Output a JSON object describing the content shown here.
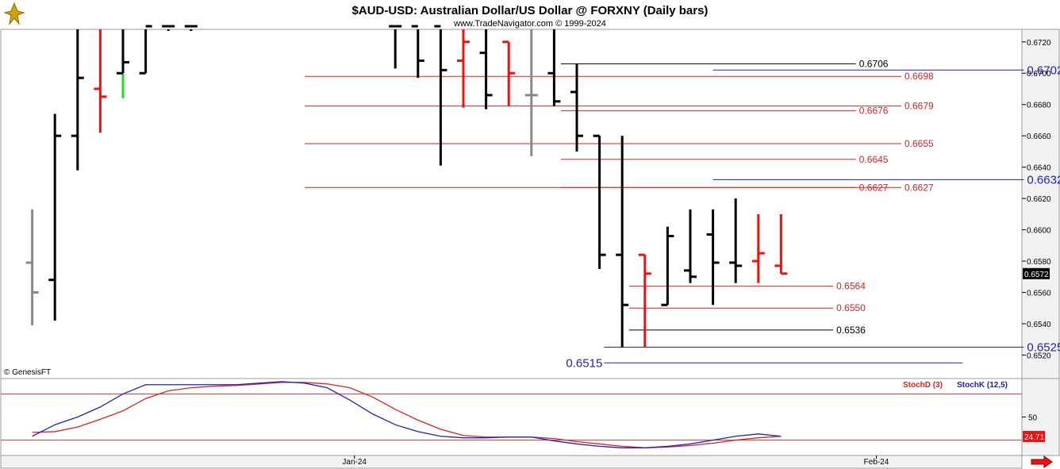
{
  "header": {
    "title": "$AUD-USD:  Australian Dollar/US Dollar @ FORXNY  (Daily bars)",
    "subtitle": "www.TradeNavigator.com © 1999-2024",
    "copyright": "© GenesisFT"
  },
  "colors": {
    "background": "#ffffff",
    "plot_background": "#ffffff",
    "axis_panel": "#f2f2f2",
    "up_bar": "#000000",
    "down_bar": "#ee1111",
    "neutral_bar": "#888888",
    "green_bar": "#22dd22",
    "red_line": "#dd2222",
    "blue_line": "#2222bb",
    "black_line": "#000000",
    "stoch_d": "#dd2222",
    "stoch_k": "#2222bb"
  },
  "price_axis": {
    "ticks": [
      "0.6720",
      "0.6700",
      "0.6680",
      "0.6660",
      "0.6640",
      "0.6620",
      "0.6600",
      "0.6580",
      "0.6560",
      "0.6540",
      "0.6520"
    ],
    "current_price": "0.6572"
  },
  "time_axis": {
    "labels": [
      "Jan-24",
      "Feb-24"
    ]
  },
  "chart_data": [
    {
      "type": "ohlc",
      "title": "$AUD-USD:  Australian Dollar/US Dollar @ FORXNY  (Daily bars)",
      "ylim": [
        0.6505,
        0.6728
      ],
      "bars": [
        {
          "x": 1,
          "o": 0.6579,
          "h": 0.6613,
          "l": 0.6539,
          "c": 0.656,
          "color": "neutral"
        },
        {
          "x": 2,
          "o": 0.6568,
          "h": 0.6674,
          "l": 0.6542,
          "c": 0.666,
          "color": "up"
        },
        {
          "x": 3,
          "o": 0.666,
          "h": 0.673,
          "l": 0.6638,
          "c": 0.6697,
          "color": "up"
        },
        {
          "x": 4,
          "o": 0.669,
          "h": 0.673,
          "l": 0.6662,
          "c": 0.6685,
          "color": "down"
        },
        {
          "x": 5,
          "o": 0.67,
          "h": 0.673,
          "l": 0.6684,
          "c": 0.6707,
          "color": "up",
          "low_color": "green"
        },
        {
          "x": 6,
          "o": 0.67,
          "h": 0.673,
          "l": 0.67,
          "c": 0.673,
          "color": "up"
        },
        {
          "x": 7,
          "o": 0.673,
          "h": 0.673,
          "l": 0.6727,
          "c": 0.673,
          "color": "up"
        },
        {
          "x": 8,
          "o": 0.673,
          "h": 0.673,
          "l": 0.6727,
          "c": 0.673,
          "color": "up"
        },
        {
          "x": 17,
          "o": 0.673,
          "h": 0.673,
          "l": 0.6703,
          "c": 0.673,
          "color": "up"
        },
        {
          "x": 18,
          "o": 0.673,
          "h": 0.673,
          "l": 0.6697,
          "c": 0.6708,
          "color": "up"
        },
        {
          "x": 19,
          "o": 0.673,
          "h": 0.673,
          "l": 0.6641,
          "c": 0.6702,
          "color": "up"
        },
        {
          "x": 20,
          "o": 0.6708,
          "h": 0.673,
          "l": 0.6678,
          "c": 0.672,
          "color": "down"
        },
        {
          "x": 21,
          "o": 0.6713,
          "h": 0.673,
          "l": 0.6677,
          "c": 0.6686,
          "color": "up"
        },
        {
          "x": 22,
          "o": 0.672,
          "h": 0.672,
          "l": 0.6679,
          "c": 0.67,
          "color": "down"
        },
        {
          "x": 23,
          "o": 0.6686,
          "h": 0.673,
          "l": 0.6647,
          "c": 0.6686,
          "color": "neutral"
        },
        {
          "x": 24,
          "o": 0.67,
          "h": 0.673,
          "l": 0.6679,
          "c": 0.6682,
          "color": "up"
        },
        {
          "x": 25,
          "o": 0.6688,
          "h": 0.6706,
          "l": 0.665,
          "c": 0.666,
          "color": "up"
        },
        {
          "x": 26,
          "o": 0.666,
          "h": 0.666,
          "l": 0.6575,
          "c": 0.6584,
          "color": "up"
        },
        {
          "x": 27,
          "o": 0.6584,
          "h": 0.666,
          "l": 0.6525,
          "c": 0.6552,
          "color": "up"
        },
        {
          "x": 28,
          "o": 0.6584,
          "h": 0.6584,
          "l": 0.6525,
          "c": 0.6572,
          "color": "down"
        },
        {
          "x": 29,
          "o": 0.6552,
          "h": 0.6602,
          "l": 0.6552,
          "c": 0.6596,
          "color": "up"
        },
        {
          "x": 30,
          "o": 0.6574,
          "h": 0.6613,
          "l": 0.6566,
          "c": 0.657,
          "color": "up"
        },
        {
          "x": 31,
          "o": 0.6597,
          "h": 0.6613,
          "l": 0.6552,
          "c": 0.6579,
          "color": "up"
        },
        {
          "x": 32,
          "o": 0.6579,
          "h": 0.662,
          "l": 0.6566,
          "c": 0.6577,
          "color": "up"
        },
        {
          "x": 33,
          "o": 0.658,
          "h": 0.661,
          "l": 0.6566,
          "c": 0.6585,
          "color": "down"
        },
        {
          "x": 34,
          "o": 0.6577,
          "h": 0.661,
          "l": 0.6572,
          "c": 0.6572,
          "color": "down"
        }
      ],
      "levels": [
        {
          "value": 0.6706,
          "label": "0.6706",
          "color": "black",
          "x_from": 24.3,
          "x_to": 37.3,
          "label_side": "end"
        },
        {
          "value": 0.6702,
          "label": "0.6702",
          "color": "blue",
          "x_from": 31,
          "x_to": 44.7,
          "label_side": "end",
          "large": true
        },
        {
          "value": 0.6698,
          "label": "0.6698",
          "color": "red",
          "x_from": 13,
          "x_to": 39.3,
          "label_side": "end"
        },
        {
          "value": 0.6679,
          "label": "0.6679",
          "color": "red",
          "x_from": 13,
          "x_to": 39.3,
          "label_side": "end"
        },
        {
          "value": 0.6676,
          "label": "0.6676",
          "color": "red",
          "x_from": 24.3,
          "x_to": 37.3,
          "label_side": "end"
        },
        {
          "value": 0.6655,
          "label": "0.6655",
          "color": "red",
          "x_from": 13,
          "x_to": 39.3,
          "label_side": "end"
        },
        {
          "value": 0.6645,
          "label": "0.6645",
          "color": "red",
          "x_from": 24.3,
          "x_to": 37.3,
          "label_side": "end"
        },
        {
          "value": 0.6632,
          "label": "0.6632",
          "color": "blue",
          "x_from": 31,
          "x_to": 44.7,
          "label_side": "end",
          "large": true
        },
        {
          "value": 0.6627,
          "label": "0.6627",
          "color": "red",
          "x_from": 24.3,
          "x_to": 37.3,
          "label_side": "end"
        },
        {
          "value": 0.6627,
          "label": "0.6627",
          "color": "red",
          "x_from": 13,
          "x_to": 39.3,
          "label_side": "end"
        },
        {
          "value": 0.6564,
          "label": "0.6564",
          "color": "red",
          "x_from": 27.3,
          "x_to": 36.3,
          "label_side": "end"
        },
        {
          "value": 0.655,
          "label": "0.6550",
          "color": "red",
          "x_from": 27.3,
          "x_to": 36.3,
          "label_side": "end"
        },
        {
          "value": 0.6536,
          "label": "0.6536",
          "color": "black",
          "x_from": 27.3,
          "x_to": 36.3,
          "label_side": "end"
        },
        {
          "value": 0.6525,
          "label": "0.6525",
          "color": "blue",
          "x_from": 26.2,
          "x_to": 44.7,
          "label_side": "end",
          "large": true
        },
        {
          "value": 0.6515,
          "label": "0.6515",
          "color": "blue",
          "x_from": 26.2,
          "x_to": 42,
          "label_side": "start",
          "large": true
        }
      ]
    },
    {
      "type": "line",
      "title": "",
      "legend": [
        "StochD (3)",
        "StochK (12,5)"
      ],
      "ylim": [
        0,
        100
      ],
      "yticks": [
        "50"
      ],
      "hlines": [
        80,
        20
      ],
      "last_value": "24.71",
      "x": [
        1,
        2,
        3,
        4,
        5,
        6,
        7,
        8,
        9,
        10,
        11,
        12,
        13,
        14,
        15,
        16,
        17,
        18,
        19,
        20,
        21,
        22,
        23,
        24,
        25,
        26,
        27,
        28,
        29,
        30,
        31,
        32,
        33,
        34
      ],
      "series": [
        {
          "name": "StochD (3)",
          "color": "red",
          "values": [
            30,
            31,
            37,
            47,
            58,
            74,
            84,
            88,
            90,
            91,
            93,
            95,
            95,
            93,
            88,
            76,
            60,
            46,
            34,
            26,
            24,
            24,
            24,
            22,
            18,
            15,
            12,
            10,
            11,
            13,
            16,
            20,
            23,
            25
          ]
        },
        {
          "name": "StochK (12,5)",
          "color": "blue",
          "values": [
            25,
            40,
            50,
            63,
            80,
            92,
            92,
            92,
            92,
            92,
            94,
            96,
            94,
            88,
            72,
            54,
            40,
            31,
            25,
            23,
            23,
            24,
            24,
            19,
            15,
            12,
            10,
            10,
            12,
            15,
            20,
            25,
            28,
            25
          ]
        }
      ]
    }
  ]
}
